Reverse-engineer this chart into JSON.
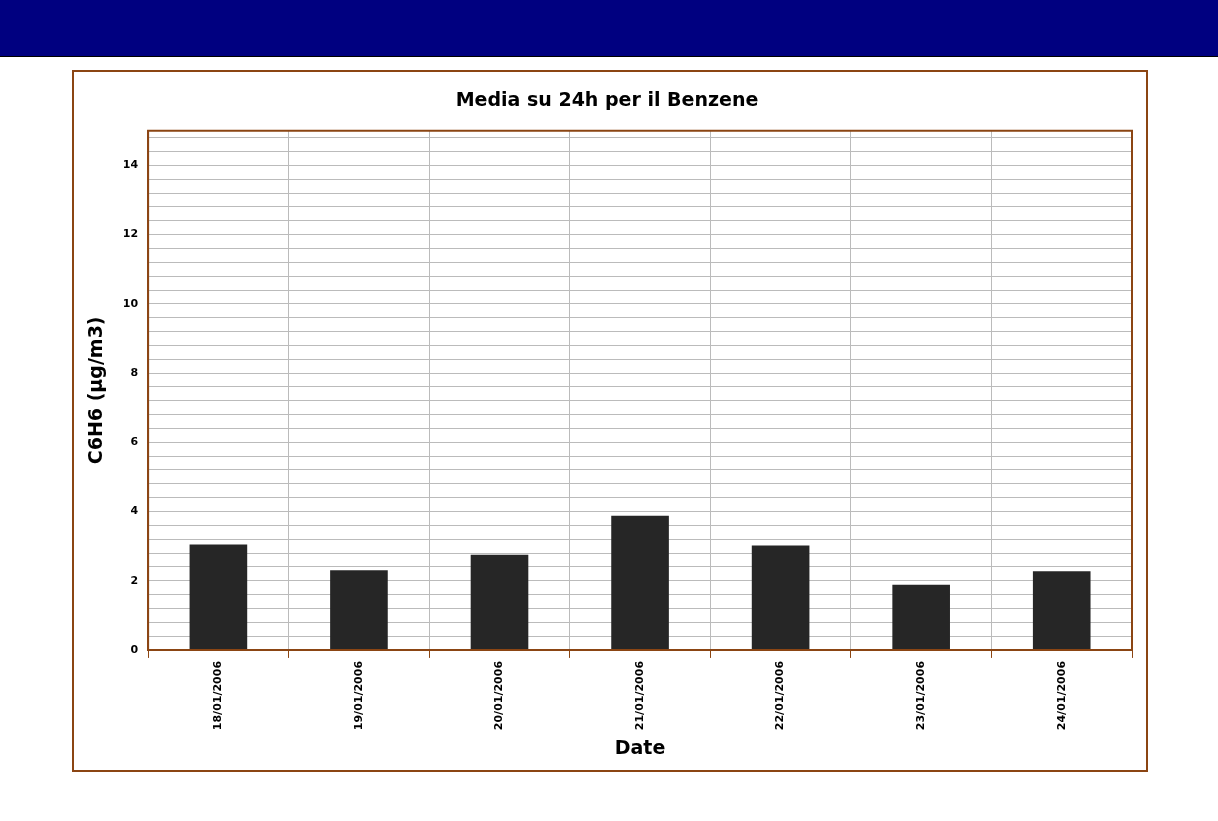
{
  "chart_data": {
    "type": "bar",
    "title": "Media su 24h per il Benzene",
    "xlabel": "Date",
    "ylabel": "C6H6 (µg/m3)",
    "categories": [
      "18/01/2006",
      "19/01/2006",
      "20/01/2006",
      "21/01/2006",
      "22/01/2006",
      "23/01/2006",
      "24/01/2006"
    ],
    "values": [
      3.05,
      2.3,
      2.75,
      3.88,
      3.02,
      1.88,
      2.27
    ],
    "color": "#262626",
    "ylim": [
      0,
      15
    ],
    "yticks": [
      0,
      {
        "value": 0.4,
        "label": null
      },
      {
        "value": 0.8,
        "label": null
      },
      {
        "value": 1.2,
        "label": null
      },
      {
        "value": 1.6,
        "label": null
      },
      2,
      {
        "value": 2.4,
        "label": null
      },
      {
        "value": 2.8,
        "label": null
      },
      {
        "value": 3.2,
        "label": null
      },
      {
        "value": 3.6,
        "label": null
      },
      4,
      {
        "value": 4.4,
        "label": null
      },
      {
        "value": 4.8,
        "label": null
      },
      {
        "value": 5.2,
        "label": null
      },
      {
        "value": 5.6,
        "label": null
      },
      6,
      {
        "value": 6.4,
        "label": null
      },
      {
        "value": 6.8,
        "label": null
      },
      {
        "value": 7.2,
        "label": null
      },
      {
        "value": 7.6,
        "label": null
      },
      8,
      {
        "value": 8.4,
        "label": null
      },
      {
        "value": 8.8,
        "label": null
      },
      {
        "value": 9.2,
        "label": null
      },
      {
        "value": 9.6,
        "label": null
      },
      10,
      {
        "value": 10.4,
        "label": null
      },
      {
        "value": 10.8,
        "label": null
      },
      {
        "value": 11.2,
        "label": null
      },
      {
        "value": 11.6,
        "label": null
      },
      12,
      {
        "value": 12.4,
        "label": null
      },
      {
        "value": 12.8,
        "label": null
      },
      {
        "value": 13.2,
        "label": null
      },
      {
        "value": 13.6,
        "label": null
      },
      14,
      {
        "value": 14.4,
        "label": null
      },
      {
        "value": 14.8,
        "label": null
      }
    ],
    "grid": true,
    "legend": false
  }
}
